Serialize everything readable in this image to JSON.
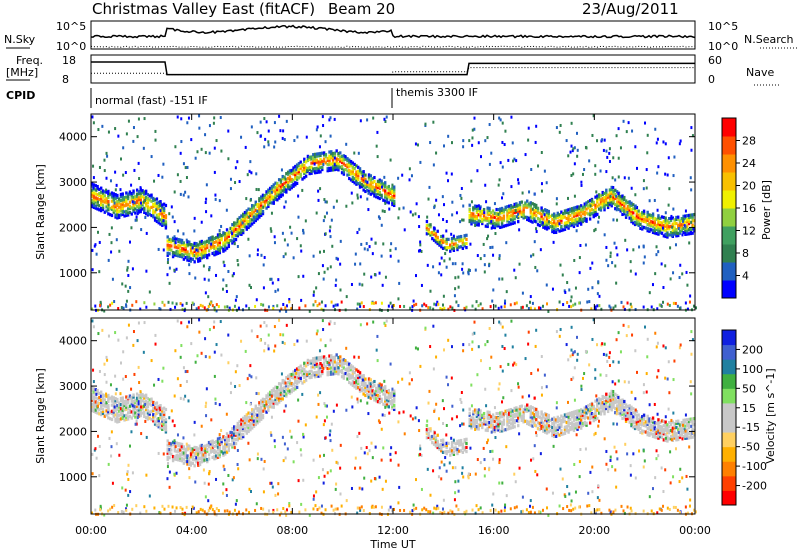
{
  "header": {
    "title": "Christmas Valley East (fitACF)",
    "beam": "Beam 20",
    "date": "23/Aug/2011"
  },
  "strips": {
    "nsky_label": "N.Sky",
    "nsky_ticks": [
      "10^5",
      "10^0"
    ],
    "nsearch_label": "N.Search",
    "nsearch_ticks": [
      "10^5",
      "10^0"
    ],
    "freq_label": [
      "Freq.",
      "[MHz]"
    ],
    "freq_ticks": [
      "18",
      "8"
    ],
    "nave_label": "Nave",
    "nave_ticks": [
      "60",
      "0"
    ],
    "cpid_label": "CPID",
    "cpid_segments": [
      {
        "start_hour": 0,
        "text": "normal (fast) -151 IF"
      },
      {
        "start_hour": 12,
        "text": "themis 3300 IF"
      }
    ]
  },
  "colors": {
    "power": [
      "#0000ff",
      "#2060c0",
      "#308050",
      "#40a060",
      "#90d040",
      "#f0f000",
      "#f8c000",
      "#ff9000",
      "#ff5000",
      "#ff0000"
    ],
    "velocity": [
      "#ff0000",
      "#ff4000",
      "#ff8000",
      "#ffb000",
      "#ffd060",
      "#c8c8c8",
      "#c8c8c8",
      "#80e060",
      "#40b040",
      "#2080a0",
      "#4060d0",
      "#1020e0"
    ]
  },
  "chart_data": [
    {
      "type": "heatmap",
      "name": "power",
      "ylabel": "Slant Range [km]",
      "xlim": [
        0,
        24
      ],
      "ylim": [
        180,
        4500
      ],
      "yticks": [
        1000,
        2000,
        3000,
        4000
      ],
      "colorbar_label": "Power [dB]",
      "colorbar_range": [
        0,
        32
      ],
      "colorbar_ticks": [
        "4",
        "8",
        "12",
        "16",
        "20",
        "24",
        "28"
      ],
      "echo_bands": [
        {
          "t0": 0,
          "t1": 3,
          "center": [
            2700,
            2450,
            2600,
            2200
          ],
          "width": 500
        },
        {
          "t0": 3,
          "t1": 12,
          "center": [
            1600,
            1450,
            1700,
            2300,
            2900,
            3400,
            3500,
            3000,
            2700
          ],
          "width": 450
        },
        {
          "t0": 13.3,
          "t1": 14.9,
          "center": [
            2000,
            1600,
            1700
          ],
          "width": 300
        },
        {
          "t0": 15,
          "t1": 24,
          "center": [
            2300,
            2200,
            2400,
            2100,
            2300,
            2700,
            2200,
            2000,
            2100
          ],
          "width": 450
        }
      ]
    },
    {
      "type": "heatmap",
      "name": "velocity",
      "ylabel": "Slant Range [km]",
      "xlabel": "Time UT",
      "xlim": [
        0,
        24
      ],
      "ylim": [
        180,
        4500
      ],
      "yticks": [
        1000,
        2000,
        3000,
        4000
      ],
      "x_ticks": [
        "00:00",
        "04:00",
        "08:00",
        "12:00",
        "16:00",
        "20:00",
        "00:00"
      ],
      "colorbar_label": "Velocity [m s^-1]",
      "colorbar_range": [
        -250,
        250
      ],
      "colorbar_ticks": [
        "-200",
        "-100",
        "-50",
        "-15",
        "15",
        "50",
        "100",
        "200"
      ]
    }
  ]
}
